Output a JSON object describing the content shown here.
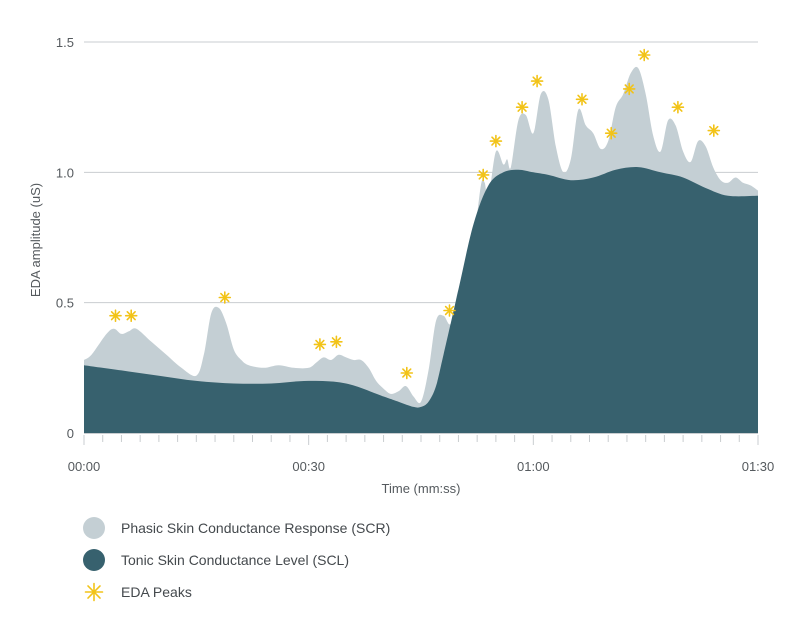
{
  "chart_data": {
    "type": "area",
    "title": "",
    "xlabel": "Time (mm:ss)",
    "ylabel": "EDA amplitude (uS)",
    "x_range_seconds": [
      0,
      90
    ],
    "xlim": [
      "00:00",
      "01:30"
    ],
    "ylim": [
      0,
      1.5
    ],
    "x_ticks": [
      {
        "value": 0,
        "label": "00:00"
      },
      {
        "value": 30,
        "label": "00:30"
      },
      {
        "value": 60,
        "label": "01:00"
      },
      {
        "value": 90,
        "label": "01:30"
      }
    ],
    "y_ticks": [
      {
        "value": 0,
        "label": "0"
      },
      {
        "value": 0.5,
        "label": "0.5"
      },
      {
        "value": 1.0,
        "label": "1.0"
      },
      {
        "value": 1.5,
        "label": "1.5"
      }
    ],
    "grid": "horizontal",
    "legend_position": "bottom-left",
    "series": [
      {
        "name": "Phasic Skin Conductance Response (SCR)",
        "color": "#c4cfd4",
        "x": [
          0,
          1,
          3,
          4,
          5,
          6,
          7,
          9,
          11,
          13,
          15,
          16,
          17,
          18,
          19,
          20,
          21,
          22,
          24,
          26,
          28,
          30,
          31,
          32,
          33,
          34,
          35,
          36,
          37,
          38,
          39,
          40,
          41,
          42,
          43,
          44,
          45,
          46,
          47,
          48,
          49,
          50,
          51,
          52,
          53,
          53.5,
          54,
          55,
          56,
          56.5,
          57,
          58,
          59,
          60,
          61,
          62,
          63,
          64,
          65,
          66,
          67,
          68,
          69,
          70,
          71,
          72,
          73,
          74,
          75,
          76,
          77,
          78,
          79,
          80,
          81,
          82,
          83,
          84,
          85,
          86,
          87,
          88,
          89,
          90
        ],
        "values": [
          0.28,
          0.3,
          0.38,
          0.4,
          0.38,
          0.39,
          0.4,
          0.35,
          0.3,
          0.25,
          0.22,
          0.3,
          0.46,
          0.48,
          0.42,
          0.32,
          0.28,
          0.26,
          0.25,
          0.26,
          0.25,
          0.25,
          0.27,
          0.29,
          0.28,
          0.3,
          0.29,
          0.28,
          0.28,
          0.25,
          0.2,
          0.17,
          0.15,
          0.16,
          0.18,
          0.14,
          0.12,
          0.24,
          0.43,
          0.45,
          0.42,
          0.55,
          0.57,
          0.72,
          0.95,
          0.96,
          0.9,
          1.08,
          1.03,
          1.05,
          1.02,
          1.2,
          1.22,
          1.15,
          1.3,
          1.28,
          1.1,
          1.0,
          1.05,
          1.24,
          1.18,
          1.15,
          1.09,
          1.12,
          1.25,
          1.3,
          1.38,
          1.4,
          1.3,
          1.14,
          1.08,
          1.2,
          1.18,
          1.08,
          1.04,
          1.12,
          1.1,
          1.02,
          0.97,
          0.96,
          0.98,
          0.96,
          0.95,
          0.93
        ]
      },
      {
        "name": "Tonic Skin Conductance Level (SCL)",
        "color": "#37616e",
        "x": [
          0,
          5,
          10,
          15,
          20,
          25,
          30,
          35,
          40,
          42,
          44,
          45,
          46,
          47,
          48,
          50,
          52,
          54,
          56,
          58,
          60,
          62,
          65,
          68,
          71,
          74,
          77,
          80,
          83,
          86,
          90
        ],
        "values": [
          0.26,
          0.24,
          0.22,
          0.2,
          0.19,
          0.19,
          0.2,
          0.19,
          0.14,
          0.12,
          0.1,
          0.1,
          0.12,
          0.18,
          0.3,
          0.55,
          0.8,
          0.95,
          1.0,
          1.01,
          1.0,
          0.99,
          0.97,
          0.98,
          1.01,
          1.02,
          1.0,
          0.98,
          0.94,
          0.91,
          0.91
        ]
      },
      {
        "name": "EDA Peaks",
        "color": "#f2c318",
        "x": [
          4.2,
          6.3,
          18.8,
          31.5,
          33.7,
          43.1,
          48.8,
          53.3,
          55.0,
          58.5,
          60.5,
          66.5,
          70.4,
          72.8,
          74.8,
          79.3,
          84.1
        ],
        "values": [
          0.45,
          0.45,
          0.52,
          0.34,
          0.35,
          0.23,
          0.47,
          0.99,
          1.12,
          1.25,
          1.35,
          1.28,
          1.15,
          1.32,
          1.45,
          1.25,
          1.16
        ]
      }
    ]
  }
}
